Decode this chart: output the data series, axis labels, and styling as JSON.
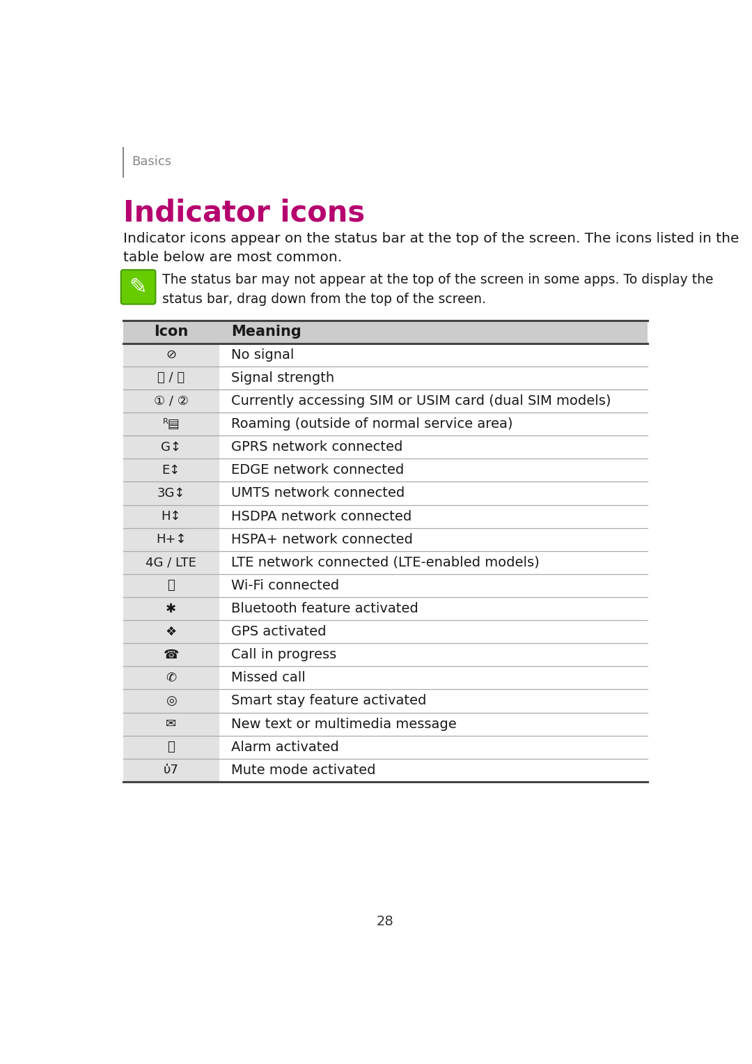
{
  "bg_color": "#ffffff",
  "page_number": "28",
  "sidebar_color": "#888888",
  "header_text": "Basics",
  "header_color": "#888888",
  "title": "Indicator icons",
  "title_color": "#b5006e",
  "intro_text": "Indicator icons appear on the status bar at the top of the screen. The icons listed in the table below are most common.",
  "note_text": "The status bar may not appear at the top of the screen in some apps. To display the\nstatus bar, drag down from the top of the screen.",
  "note_icon_color": "#66cc00",
  "table_header_bg": "#cccccc",
  "table_header_icon": "Icon",
  "table_header_meaning": "Meaning",
  "meanings": [
    "No signal",
    "Signal strength",
    "Currently accessing SIM or USIM card (dual SIM models)",
    "Roaming (outside of normal service area)",
    "GPRS network connected",
    "EDGE network connected",
    "UMTS network connected",
    "HSDPA network connected",
    "HSPA+ network connected",
    "LTE network connected (LTE-enabled models)",
    "Wi-Fi connected",
    "Bluetooth feature activated",
    "GPS activated",
    "Call in progress",
    "Missed call",
    "Smart stay feature activated",
    "New text or multimedia message",
    "Alarm activated",
    "Mute mode activated"
  ],
  "icon_texts": [
    "⊘",
    "⍂ / ⍂",
    "① / ②",
    "ᴿ▤",
    "G↕",
    "E↕",
    "3G↕",
    "H↕",
    "H+↕",
    "4G / LTE",
    "⚿",
    "✱",
    "❖",
    "☎",
    "✆",
    "◎",
    "✉",
    "⏰",
    "ὐ7"
  ]
}
